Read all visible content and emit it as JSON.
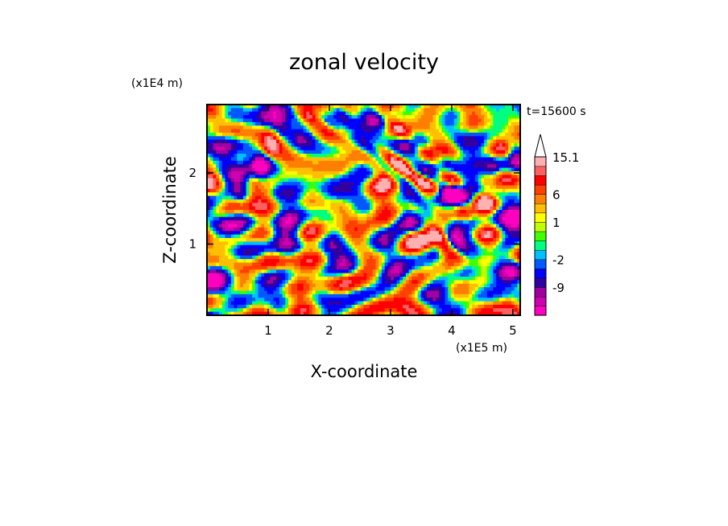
{
  "chart_data": {
    "type": "heatmap",
    "title": "zonal velocity",
    "time_label": "t=15600 s",
    "xlabel": "X-coordinate",
    "ylabel": "Z-coordinate",
    "x_scale_label": "(x1E5 m)",
    "y_scale_label": "(x1E4 m)",
    "xlim": [
      0,
      5.12
    ],
    "ylim": [
      0,
      2.96
    ],
    "x_ticks": [
      1,
      2,
      3,
      4,
      5
    ],
    "y_ticks": [
      1,
      2
    ],
    "x_tick_labels": [
      "1",
      "2",
      "3",
      "4",
      "5"
    ],
    "y_tick_labels": [
      "1",
      "2"
    ],
    "colorbar": {
      "levels": [
        -13.5,
        -11,
        -9,
        -6.5,
        -4,
        -2,
        -1,
        0,
        0.5,
        1,
        2,
        4,
        6,
        8.5,
        11,
        13,
        15.1
      ],
      "colors": [
        "#ff00c0",
        "#d000b0",
        "#a000a0",
        "#3000a0",
        "#0000ff",
        "#0058ff",
        "#00c0ff",
        "#00ff80",
        "#40ff00",
        "#c0ff00",
        "#ffff00",
        "#ffc000",
        "#ff8000",
        "#ff4000",
        "#ff0000",
        "#ff6060",
        "#ffb0b0",
        "#ffffff"
      ],
      "tick_labels": [
        "15.1",
        "6",
        "1",
        "-2",
        "-9"
      ],
      "tick_values": [
        15.1,
        6,
        1,
        -2,
        -9
      ]
    },
    "field_description_values": {
      "grid_cols": 104,
      "grid_rows": 60
    }
  }
}
